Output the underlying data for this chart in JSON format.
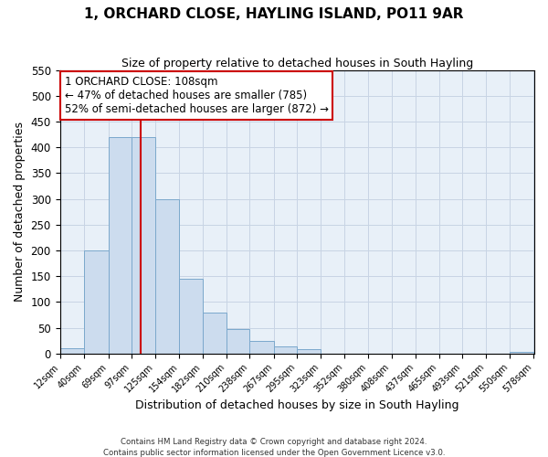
{
  "title": "1, ORCHARD CLOSE, HAYLING ISLAND, PO11 9AR",
  "subtitle": "Size of property relative to detached houses in South Hayling",
  "xlabel": "Distribution of detached houses by size in South Hayling",
  "ylabel": "Number of detached properties",
  "bin_edges": [
    12,
    40,
    69,
    97,
    125,
    154,
    182,
    210,
    238,
    267,
    295,
    323,
    352,
    380,
    408,
    437,
    465,
    493,
    521,
    550,
    578
  ],
  "bar_heights": [
    10,
    200,
    420,
    420,
    300,
    145,
    80,
    48,
    25,
    13,
    8,
    0,
    0,
    0,
    0,
    0,
    0,
    0,
    0,
    3
  ],
  "bar_color": "#ccdcee",
  "bar_edgecolor": "#7ba8cc",
  "tick_labels": [
    "12sqm",
    "40sqm",
    "69sqm",
    "97sqm",
    "125sqm",
    "154sqm",
    "182sqm",
    "210sqm",
    "238sqm",
    "267sqm",
    "295sqm",
    "323sqm",
    "352sqm",
    "380sqm",
    "408sqm",
    "437sqm",
    "465sqm",
    "493sqm",
    "521sqm",
    "550sqm",
    "578sqm"
  ],
  "vline_x": 108,
  "vline_color": "#cc0000",
  "ylim": [
    0,
    550
  ],
  "yticks": [
    0,
    50,
    100,
    150,
    200,
    250,
    300,
    350,
    400,
    450,
    500,
    550
  ],
  "annotation_title": "1 ORCHARD CLOSE: 108sqm",
  "annotation_line1": "← 47% of detached houses are smaller (785)",
  "annotation_line2": "52% of semi-detached houses are larger (872) →",
  "annotation_box_facecolor": "#ffffff",
  "annotation_box_edgecolor": "#cc0000",
  "grid_color": "#c8d4e4",
  "bg_color": "#e8f0f8",
  "footer1": "Contains HM Land Registry data © Crown copyright and database right 2024.",
  "footer2": "Contains public sector information licensed under the Open Government Licence v3.0."
}
